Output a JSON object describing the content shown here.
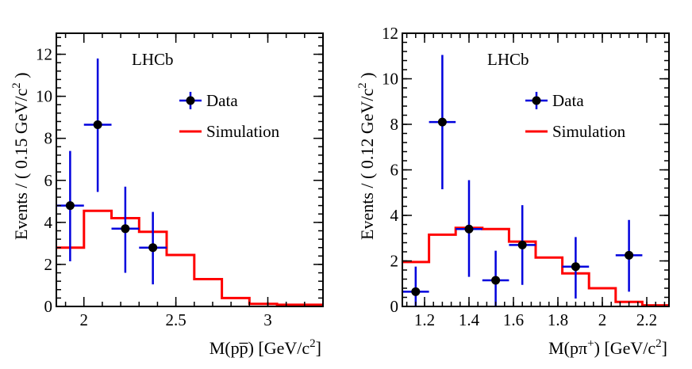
{
  "chart_data": [
    {
      "type": "scatter",
      "panel": "left",
      "experiment_label": "LHCb",
      "xlabel": "M(pp̅) [GeV/c²]",
      "xlabel_main": "M(pp̅) [GeV/c",
      "xlabel_sup": "2",
      "xlabel_tail": "]",
      "ylabel_main": "Events / ( 0.15 GeV/c",
      "ylabel_sup": "2",
      "ylabel_tail": " )",
      "xlim": [
        1.85,
        3.3
      ],
      "ylim": [
        0,
        13
      ],
      "xticks": [
        2,
        2.5,
        3
      ],
      "xtick_labels": [
        "2",
        "2.5",
        "3"
      ],
      "yticks": [
        0,
        2,
        4,
        6,
        8,
        10,
        12
      ],
      "ytick_labels": [
        "0",
        "2",
        "4",
        "6",
        "8",
        "10",
        "12"
      ],
      "data_color": "#0000dd",
      "sim_color": "#ff0000",
      "legend": {
        "data_label": "Data",
        "sim_label": "Simulation"
      },
      "data": [
        {
          "x": 1.925,
          "y": 4.8,
          "xerr": 0.075,
          "ylo": 2.15,
          "yhi": 7.4
        },
        {
          "x": 2.075,
          "y": 8.65,
          "xerr": 0.075,
          "ylo": 5.45,
          "yhi": 11.8
        },
        {
          "x": 2.225,
          "y": 3.7,
          "xerr": 0.075,
          "ylo": 1.6,
          "yhi": 5.7
        },
        {
          "x": 2.375,
          "y": 2.8,
          "xerr": 0.075,
          "ylo": 1.05,
          "yhi": 4.5
        }
      ],
      "simulation": {
        "edges": [
          1.85,
          2.0,
          2.15,
          2.3,
          2.45,
          2.6,
          2.75,
          2.9,
          3.05,
          3.2,
          3.3
        ],
        "values": [
          2.8,
          4.55,
          4.2,
          3.55,
          2.45,
          1.3,
          0.4,
          0.12,
          0.08,
          0.08
        ]
      }
    },
    {
      "type": "scatter",
      "panel": "right",
      "experiment_label": "LHCb",
      "xlabel": "M(pπ⁺) [GeV/c²]",
      "xlabel_main": "M(pπ",
      "xlabel_sup1": "+",
      "xlabel_mid": ") [GeV/c",
      "xlabel_sup": "2",
      "xlabel_tail": "]",
      "ylabel_main": "Events / ( 0.12 GeV/c",
      "ylabel_sup": "2",
      "ylabel_tail": " )",
      "xlim": [
        1.1,
        2.3
      ],
      "ylim": [
        0,
        12
      ],
      "xticks": [
        1.2,
        1.4,
        1.6,
        1.8,
        2.0,
        2.2
      ],
      "xtick_labels": [
        "1.2",
        "1.4",
        "1.6",
        "1.8",
        "2",
        "2.2"
      ],
      "yticks": [
        0,
        2,
        4,
        6,
        8,
        10,
        12
      ],
      "ytick_labels": [
        "0",
        "2",
        "4",
        "6",
        "8",
        "10",
        "12"
      ],
      "data_color": "#0000dd",
      "sim_color": "#ff0000",
      "legend": {
        "data_label": "Data",
        "sim_label": "Simulation"
      },
      "data": [
        {
          "x": 1.16,
          "y": 0.65,
          "xerr": 0.06,
          "ylo": 0.0,
          "yhi": 1.75
        },
        {
          "x": 1.28,
          "y": 8.1,
          "xerr": 0.06,
          "ylo": 5.15,
          "yhi": 11.05
        },
        {
          "x": 1.4,
          "y": 3.4,
          "xerr": 0.06,
          "ylo": 1.3,
          "yhi": 5.55
        },
        {
          "x": 1.52,
          "y": 1.15,
          "xerr": 0.06,
          "ylo": 0.0,
          "yhi": 2.45
        },
        {
          "x": 1.64,
          "y": 2.7,
          "xerr": 0.06,
          "ylo": 0.95,
          "yhi": 4.45
        },
        {
          "x": 1.88,
          "y": 1.75,
          "xerr": 0.06,
          "ylo": 0.35,
          "yhi": 3.05
        },
        {
          "x": 2.12,
          "y": 2.25,
          "xerr": 0.06,
          "ylo": 0.65,
          "yhi": 3.8
        }
      ],
      "simulation": {
        "edges": [
          1.1,
          1.16,
          1.22,
          1.34,
          1.46,
          1.58,
          1.7,
          1.82,
          1.94,
          2.06,
          2.18,
          2.3
        ],
        "values": [
          1.95,
          1.95,
          3.15,
          3.45,
          3.4,
          2.85,
          2.15,
          1.45,
          0.8,
          0.2,
          0.05
        ]
      }
    }
  ]
}
